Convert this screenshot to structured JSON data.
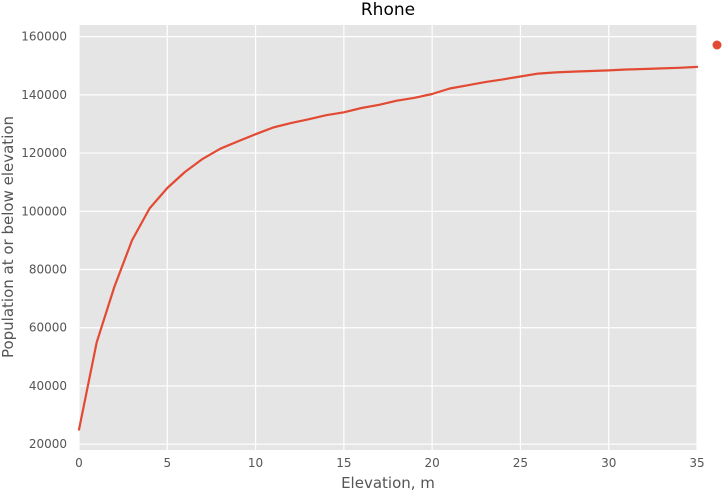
{
  "chart_data": {
    "type": "line",
    "title": "Rhone",
    "xlabel": "Elevation, m",
    "ylabel": "Population at or below elevation",
    "xlim": [
      0,
      35
    ],
    "ylim": [
      18000,
      164000
    ],
    "xticks": [
      0,
      5,
      10,
      15,
      20,
      25,
      30,
      35
    ],
    "yticks": [
      20000,
      40000,
      60000,
      80000,
      100000,
      120000,
      140000,
      160000
    ],
    "grid": true,
    "legend": "right",
    "series": [
      {
        "color": "#e24a33",
        "x": [
          0,
          1,
          2,
          3,
          4,
          5,
          6,
          7,
          8,
          9,
          10,
          11,
          12,
          13,
          14,
          15,
          16,
          17,
          18,
          19,
          20,
          21,
          22,
          23,
          24,
          25,
          26,
          27,
          28,
          29,
          30,
          31,
          32,
          33,
          34,
          35
        ],
        "y": [
          25000,
          55000,
          74000,
          90000,
          101000,
          108000,
          113500,
          118000,
          121500,
          124000,
          126500,
          128800,
          130300,
          131600,
          133000,
          134000,
          135500,
          136600,
          138000,
          139000,
          140300,
          142200,
          143300,
          144400,
          145300,
          146300,
          147300,
          147700,
          148000,
          148200,
          148400,
          148700,
          148900,
          149100,
          149300,
          149600
        ]
      }
    ]
  }
}
